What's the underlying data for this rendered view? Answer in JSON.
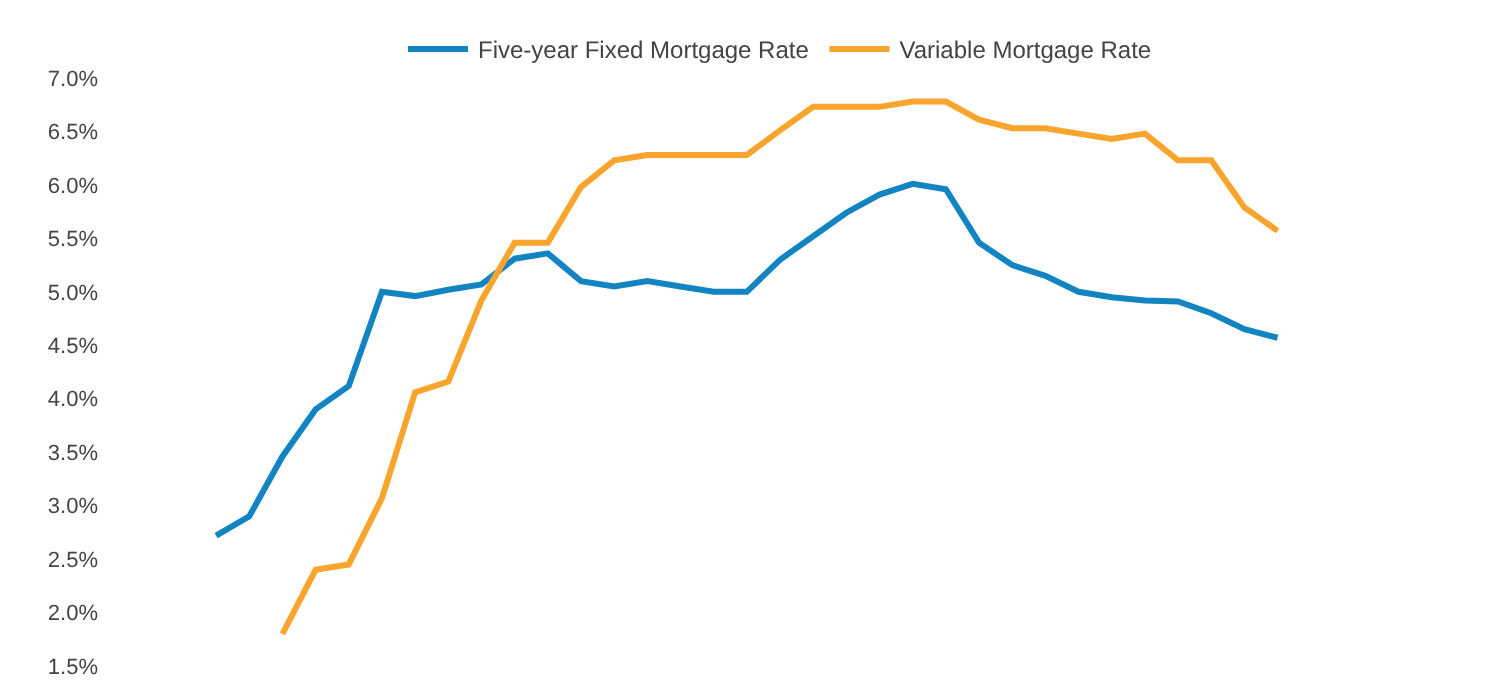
{
  "chart_data": {
    "type": "line",
    "categories": [
      null,
      null,
      null,
      null,
      null,
      null,
      null,
      null,
      null,
      null,
      null,
      null,
      null,
      null,
      null,
      null,
      null,
      null,
      null,
      null,
      null,
      null,
      null,
      null,
      null,
      null,
      null,
      null,
      null,
      null,
      null,
      null,
      null
    ],
    "series": [
      {
        "name": "Five-year Fixed Mortgage Rate",
        "color": "#1384c2",
        "values": [
          2.72,
          2.9,
          3.46,
          3.9,
          4.12,
          5.0,
          4.96,
          5.02,
          5.07,
          5.31,
          5.36,
          5.1,
          5.05,
          5.1,
          5.05,
          5.0,
          5.0,
          5.3,
          5.52,
          5.74,
          5.91,
          6.01,
          5.96,
          5.46,
          5.25,
          5.15,
          5.0,
          4.95,
          4.92,
          4.91,
          4.8,
          4.65,
          4.57
        ]
      },
      {
        "name": "Variable Mortgage Rate",
        "color": "#f9a42c",
        "values": [
          null,
          null,
          1.8,
          2.4,
          2.45,
          3.07,
          4.06,
          4.16,
          4.92,
          5.46,
          5.46,
          5.98,
          6.23,
          6.28,
          6.28,
          6.28,
          6.28,
          6.51,
          6.73,
          6.73,
          6.73,
          6.78,
          6.78,
          6.61,
          6.53,
          6.53,
          6.48,
          6.43,
          6.48,
          6.23,
          6.23,
          5.79,
          5.57
        ]
      }
    ],
    "ylim": [
      1.5,
      7.0
    ],
    "yticks": [
      {
        "value": 1.5,
        "label": "1.5%"
      },
      {
        "value": 2.0,
        "label": "2.0%"
      },
      {
        "value": 2.5,
        "label": "2.5%"
      },
      {
        "value": 3.0,
        "label": "3.0%"
      },
      {
        "value": 3.5,
        "label": "3.5%"
      },
      {
        "value": 4.0,
        "label": "4.0%"
      },
      {
        "value": 4.5,
        "label": "4.5%"
      },
      {
        "value": 5.0,
        "label": "5.0%"
      },
      {
        "value": 5.5,
        "label": "5.5%"
      },
      {
        "value": 6.0,
        "label": "6.0%"
      },
      {
        "value": 6.5,
        "label": "6.5%"
      },
      {
        "value": 7.0,
        "label": "7.0%"
      }
    ],
    "legend": "top",
    "marker": "none",
    "line_style": "solid",
    "tick_labels": "y"
  }
}
